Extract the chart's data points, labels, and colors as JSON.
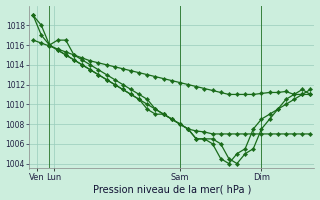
{
  "background_color": "#cceedd",
  "line_color": "#1a6b1a",
  "grid_color": "#99ccbb",
  "title": "Pression niveau de la mer( hPa )",
  "ylim": [
    1003.5,
    1020
  ],
  "yticks": [
    1004,
    1006,
    1008,
    1010,
    1012,
    1014,
    1016,
    1018
  ],
  "series": [
    {
      "x": [
        0,
        1,
        2,
        3,
        4,
        5,
        6,
        7,
        8,
        9,
        10,
        11,
        12,
        13,
        14,
        15,
        16,
        17,
        18,
        19,
        20,
        21,
        22,
        23,
        24,
        25,
        26,
        27,
        28,
        29,
        30,
        31,
        32,
        33,
        34
      ],
      "y": [
        1016.5,
        1016.2,
        1015.9,
        1015.6,
        1015.3,
        1015.0,
        1014.7,
        1014.4,
        1014.2,
        1014.0,
        1013.8,
        1013.6,
        1013.4,
        1013.2,
        1013.0,
        1012.8,
        1012.6,
        1012.4,
        1012.2,
        1012.0,
        1011.8,
        1011.6,
        1011.4,
        1011.2,
        1011.0,
        1011.0,
        1011.0,
        1011.0,
        1011.1,
        1011.2,
        1011.2,
        1011.3,
        1011.0,
        1011.0,
        1011.0
      ]
    },
    {
      "x": [
        0,
        1,
        2,
        3,
        4,
        5,
        6,
        7,
        8,
        9,
        10,
        11,
        12,
        13,
        14,
        15,
        16,
        17,
        18,
        19,
        20,
        21,
        22,
        23,
        24,
        25,
        26,
        27,
        28,
        29,
        30,
        31,
        32,
        33,
        34
      ],
      "y": [
        1019.0,
        1018.0,
        1016.0,
        1016.5,
        1016.5,
        1015.0,
        1014.5,
        1014.0,
        1013.5,
        1013.0,
        1012.5,
        1012.0,
        1011.5,
        1011.0,
        1010.5,
        1009.5,
        1009.0,
        1008.5,
        1008.0,
        1007.5,
        1006.5,
        1006.5,
        1006.5,
        1006.0,
        1004.5,
        1004.0,
        1005.0,
        1005.5,
        1007.5,
        1008.5,
        1009.5,
        1010.5,
        1011.0,
        1011.5,
        1011.0
      ]
    },
    {
      "x": [
        2,
        3,
        4,
        5,
        6,
        7,
        8,
        9,
        10,
        11,
        12,
        13,
        14,
        15,
        16,
        17,
        18,
        19,
        20,
        21,
        22,
        23,
        24,
        25,
        26,
        27,
        28,
        29,
        30,
        31,
        32,
        33,
        34
      ],
      "y": [
        1016.0,
        1015.5,
        1015.0,
        1014.5,
        1014.0,
        1013.5,
        1013.0,
        1012.5,
        1012.0,
        1011.5,
        1011.0,
        1010.5,
        1009.5,
        1009.0,
        1009.0,
        1008.5,
        1008.0,
        1007.5,
        1006.5,
        1006.5,
        1006.0,
        1004.5,
        1004.0,
        1005.0,
        1005.5,
        1007.5,
        1008.5,
        1009.0,
        1009.5,
        1010.0,
        1010.5,
        1011.0,
        1011.5
      ]
    },
    {
      "x": [
        0,
        1,
        2,
        3,
        4,
        5,
        6,
        7,
        8,
        9,
        10,
        11,
        12,
        13,
        14,
        15,
        16,
        17,
        18,
        19,
        20,
        21,
        22,
        23,
        24,
        25,
        26,
        27,
        28,
        29,
        30,
        31,
        32,
        33,
        34
      ],
      "y": [
        1019.0,
        1017.0,
        1016.0,
        1015.5,
        1015.0,
        1014.5,
        1014.0,
        1013.5,
        1013.0,
        1012.5,
        1012.0,
        1011.5,
        1011.0,
        1010.5,
        1010.0,
        1009.5,
        1009.0,
        1008.5,
        1008.0,
        1007.5,
        1007.3,
        1007.2,
        1007.0,
        1007.0,
        1007.0,
        1007.0,
        1007.0,
        1007.0,
        1007.0,
        1007.0,
        1007.0,
        1007.0,
        1007.0,
        1007.0,
        1007.0
      ]
    }
  ],
  "vlines": [
    2,
    18,
    28
  ],
  "xtick_pos": [
    0.5,
    2.5,
    18,
    28
  ],
  "xtick_labels": [
    "Ven",
    "Lun",
    "Sam",
    "Dim"
  ]
}
